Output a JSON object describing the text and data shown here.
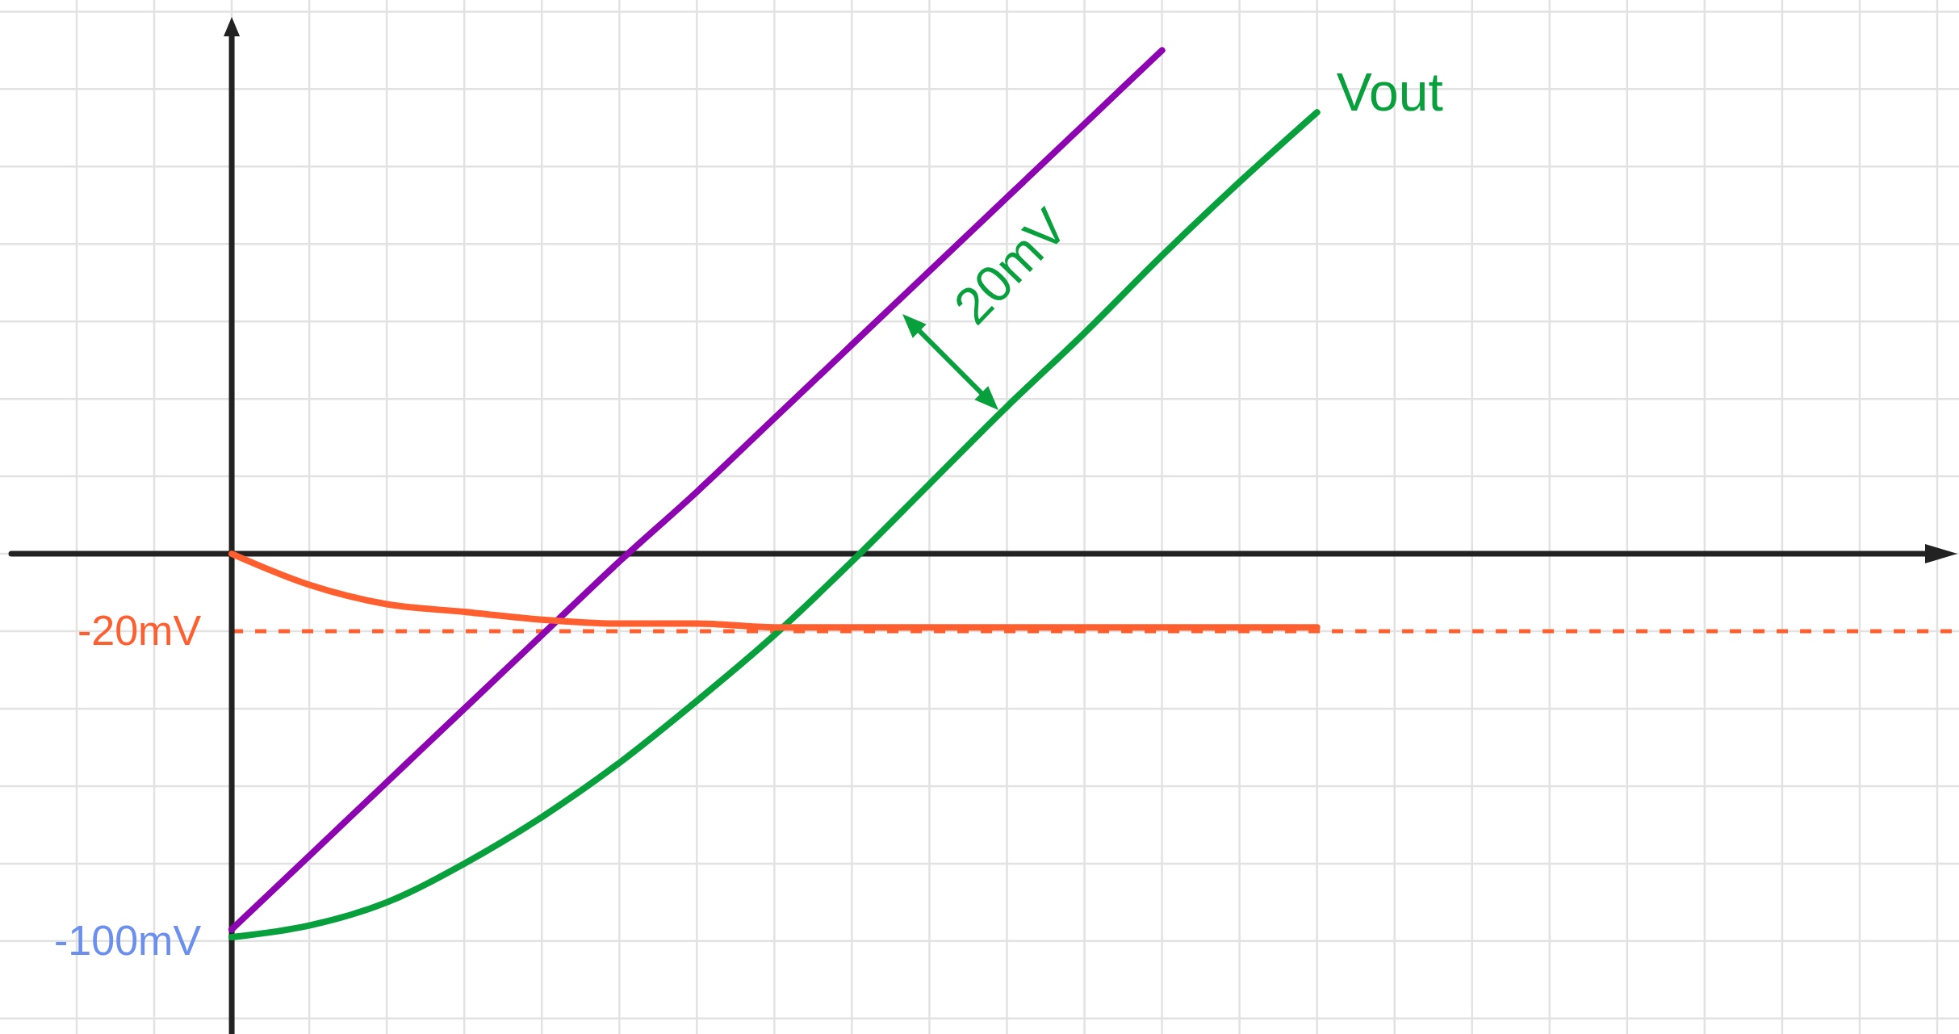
{
  "chart_data": {
    "type": "line",
    "categories": [
      null,
      null,
      null,
      null,
      null,
      null,
      null,
      null,
      null,
      null,
      null,
      null,
      null,
      null,
      null,
      null,
      null,
      null,
      null,
      null,
      null,
      null,
      null,
      null,
      null
    ],
    "series": [
      {
        "color": "#8c05b0",
        "values": [
          null,
          null,
          -97,
          -78,
          -59,
          -40,
          -21,
          -2,
          16,
          35,
          54,
          73,
          92,
          111,
          130,
          null,
          null,
          null,
          null,
          null,
          null,
          null,
          null,
          null,
          null
        ]
      },
      {
        "name": "Vout",
        "color": "#08a03d",
        "values": [
          null,
          null,
          -99,
          -96,
          -90,
          -80,
          -68,
          -54,
          -38,
          -21,
          -2,
          18,
          38,
          57,
          77,
          96,
          114,
          null,
          null,
          null,
          null,
          null,
          null,
          null,
          null
        ]
      },
      {
        "color": "#ff5f2e",
        "values": [
          null,
          null,
          0,
          -8,
          -13,
          -15,
          -17,
          -18,
          -18,
          -19,
          -19,
          -19,
          -19,
          -19,
          -19,
          -19,
          -19,
          null,
          null,
          null,
          null,
          null,
          null,
          null,
          null
        ]
      }
    ],
    "ylim": [
      -124,
      143
    ],
    "yticks": [
      {
        "value": -120,
        "label": null
      },
      {
        "value": -100,
        "label": "-100mV"
      },
      {
        "value": -80,
        "label": null
      },
      {
        "value": -60,
        "label": null
      },
      {
        "value": -40,
        "label": null
      },
      {
        "value": -20,
        "label": "-20mV"
      },
      {
        "value": 0,
        "label": null
      },
      {
        "value": 20,
        "label": null
      },
      {
        "value": 40,
        "label": null
      },
      {
        "value": 60,
        "label": null
      },
      {
        "value": 80,
        "label": null
      },
      {
        "value": 100,
        "label": null
      },
      {
        "value": 120,
        "label": null
      },
      {
        "value": 140,
        "label": null
      }
    ],
    "ref_lines": [
      {
        "axis": "y",
        "value": -20,
        "color": "#ff5f2e",
        "line_style": "dashed"
      }
    ],
    "annotations": [
      "20mV"
    ],
    "grid": true,
    "tick_labels": "y"
  }
}
